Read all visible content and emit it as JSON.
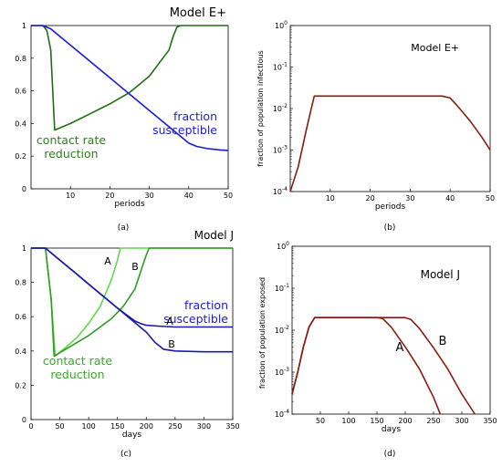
{
  "chart_data": [
    {
      "type": "line",
      "caption": "(a)",
      "title": "Model E+",
      "xlabel": "periods",
      "xlim": [
        0,
        50
      ],
      "ylim": [
        0,
        1
      ],
      "xticks": [
        "10",
        "20",
        "30",
        "40",
        "50"
      ],
      "yticks": [
        "0",
        "0.2",
        "0.4",
        "0.6",
        "0.8",
        "1"
      ],
      "annotations": [
        {
          "lines": [
            "contact rate",
            "reduction"
          ],
          "color": "#2e7d1e"
        },
        {
          "lines": [
            "fraction",
            "susceptible"
          ],
          "color": "#1a1adb"
        }
      ],
      "series": [
        {
          "color": "#1f6e13",
          "x": [
            0,
            3,
            4,
            5,
            6,
            10,
            15,
            20,
            25,
            30,
            35,
            36,
            37,
            38,
            50
          ],
          "y": [
            1,
            1,
            0.97,
            0.85,
            0.36,
            0.4,
            0.46,
            0.52,
            0.59,
            0.69,
            0.85,
            0.93,
            0.99,
            1,
            1
          ]
        },
        {
          "color": "#1a1adb",
          "x": [
            0,
            3,
            5,
            10,
            15,
            20,
            25,
            30,
            35,
            40,
            42,
            45,
            48,
            50
          ],
          "y": [
            1,
            1,
            0.98,
            0.88,
            0.78,
            0.68,
            0.58,
            0.48,
            0.38,
            0.28,
            0.26,
            0.245,
            0.238,
            0.235
          ]
        }
      ]
    },
    {
      "type": "line",
      "caption": "(b)",
      "title": "Model E+",
      "xlabel": "periods",
      "ylabel": "fraction of population infectious",
      "scale_y": "log",
      "xlim": [
        0,
        50
      ],
      "ylim": [
        0.0001,
        1
      ],
      "xticks": [
        "10",
        "20",
        "30",
        "40",
        "50"
      ],
      "yticks": [
        "10^-4",
        "10^-3",
        "10^-2",
        "10^-1",
        "10^0"
      ],
      "series": [
        {
          "color": "#8b1a0e",
          "x": [
            0,
            2,
            4,
            6,
            10,
            20,
            30,
            38,
            40,
            42,
            45,
            48,
            50
          ],
          "y": [
            0.0001,
            0.0004,
            0.003,
            0.02,
            0.02,
            0.02,
            0.02,
            0.02,
            0.018,
            0.011,
            0.005,
            0.002,
            0.001
          ]
        }
      ]
    },
    {
      "type": "line",
      "caption": "(c)",
      "title": "Model J",
      "xlabel": "days",
      "xlim": [
        0,
        350
      ],
      "ylim": [
        0,
        1
      ],
      "xticks": [
        "0",
        "50",
        "100",
        "150",
        "200",
        "250",
        "300",
        "350"
      ],
      "yticks": [
        "0",
        "0.2",
        "0.4",
        "0.6",
        "0.8",
        "1"
      ],
      "annotations": [
        {
          "lines": [
            "contact rate",
            "reduction"
          ],
          "color": "#3aa82a"
        },
        {
          "lines": [
            "fraction",
            "susceptible"
          ],
          "color": "#1a1adb"
        }
      ],
      "series_labels": [
        "A",
        "B"
      ],
      "series": [
        {
          "name": "A",
          "color": "#5fd84a",
          "x": [
            0,
            25,
            35,
            42,
            60,
            80,
            100,
            120,
            140,
            150,
            155,
            350
          ],
          "y": [
            1,
            1,
            0.7,
            0.37,
            0.42,
            0.48,
            0.56,
            0.66,
            0.82,
            0.93,
            1,
            1
          ]
        },
        {
          "name": "B",
          "color": "#2e9c22",
          "x": [
            0,
            25,
            35,
            40,
            60,
            80,
            100,
            120,
            140,
            160,
            180,
            190,
            200,
            205,
            350
          ],
          "y": [
            1,
            1,
            0.7,
            0.37,
            0.41,
            0.45,
            0.49,
            0.54,
            0.59,
            0.66,
            0.76,
            0.86,
            0.96,
            1,
            1
          ]
        },
        {
          "name": "A",
          "color": "#1a1aa8",
          "x": [
            0,
            25,
            50,
            75,
            100,
            125,
            150,
            170,
            180,
            190,
            200,
            220,
            250,
            350
          ],
          "y": [
            1,
            1,
            0.93,
            0.86,
            0.79,
            0.72,
            0.65,
            0.6,
            0.575,
            0.56,
            0.55,
            0.545,
            0.54,
            0.54
          ]
        },
        {
          "name": "B",
          "color": "#1a1aa8",
          "x": [
            0,
            25,
            50,
            75,
            100,
            125,
            150,
            175,
            200,
            215,
            230,
            250,
            300,
            350
          ],
          "y": [
            1,
            1,
            0.93,
            0.86,
            0.79,
            0.72,
            0.65,
            0.58,
            0.51,
            0.45,
            0.41,
            0.4,
            0.395,
            0.395
          ]
        }
      ]
    },
    {
      "type": "line",
      "caption": "(d)",
      "title": "Model J",
      "xlabel": "days",
      "ylabel": "fraction of population exposed",
      "scale_y": "log",
      "xlim": [
        0,
        350
      ],
      "ylim": [
        0.0001,
        1
      ],
      "xticks": [
        "50",
        "100",
        "150",
        "200",
        "250",
        "300",
        "350"
      ],
      "yticks": [
        "10^-4",
        "10^-3",
        "10^-2",
        "10^-1",
        "10^0"
      ],
      "series_labels": [
        "A",
        "B"
      ],
      "series": [
        {
          "name": "A",
          "color": "#8b1a0e",
          "x": [
            0,
            10,
            20,
            30,
            40,
            100,
            150,
            160,
            175,
            200,
            225,
            250,
            262
          ],
          "y": [
            0.0003,
            0.001,
            0.004,
            0.012,
            0.02,
            0.02,
            0.02,
            0.019,
            0.012,
            0.004,
            0.0012,
            0.00025,
            0.0001
          ]
        },
        {
          "name": "B",
          "color": "#8b1a0e",
          "x": [
            0,
            10,
            20,
            30,
            40,
            100,
            150,
            200,
            210,
            225,
            250,
            275,
            300,
            323
          ],
          "y": [
            0.0003,
            0.001,
            0.004,
            0.012,
            0.02,
            0.02,
            0.02,
            0.02,
            0.018,
            0.011,
            0.0038,
            0.0012,
            0.0003,
            0.0001
          ]
        }
      ]
    }
  ]
}
